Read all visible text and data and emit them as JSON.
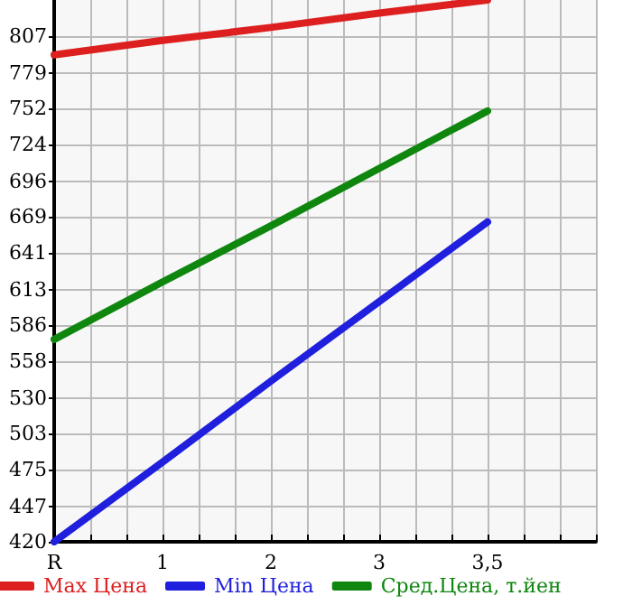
{
  "chart_data": {
    "type": "line",
    "categories": [
      "R",
      null,
      null,
      "1",
      null,
      null,
      "2",
      null,
      null,
      "3",
      null,
      null,
      "3,5",
      null,
      null,
      null
    ],
    "series": [
      {
        "name": "Max Цена",
        "color": "#dd1f1f",
        "values": [
          793,
          null,
          null,
          804,
          null,
          null,
          814,
          null,
          null,
          825,
          null,
          null,
          835,
          null,
          null,
          null
        ]
      },
      {
        "name": "Min Цена",
        "color": "#1f1fdd",
        "values": [
          420,
          null,
          null,
          481,
          null,
          null,
          543,
          null,
          null,
          604,
          null,
          null,
          665,
          null,
          null,
          null
        ]
      },
      {
        "name": "Сред.Цена, т.йен",
        "color": "#0f870f",
        "values": [
          575,
          null,
          null,
          619,
          null,
          null,
          662,
          null,
          null,
          706,
          null,
          null,
          750,
          null,
          null,
          null
        ]
      }
    ],
    "ylim": [
      420,
      835
    ],
    "yticks": [
      420,
      447,
      475,
      503,
      530,
      558,
      586,
      613,
      641,
      669,
      696,
      724,
      752,
      779,
      807
    ],
    "grid": true,
    "legend": "bottom",
    "marker": "none",
    "line_style": "solid"
  }
}
